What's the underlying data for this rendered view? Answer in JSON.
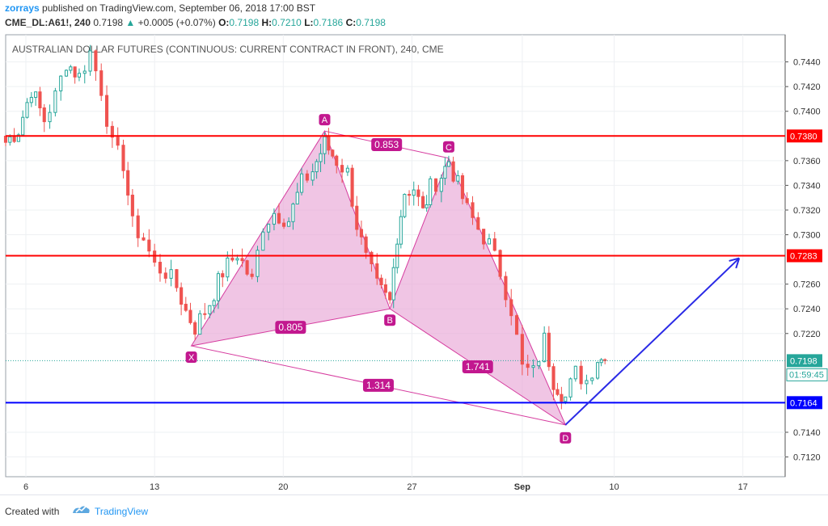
{
  "header": {
    "user": "zorrays",
    "published": "published on TradingView.com, September 06, 2018 17:00 BST",
    "symbol": "CME_DL:A61!, 240",
    "last": "0.7198",
    "change": "+0.0005 (+0.07%)",
    "o_label": "O:",
    "o_value": "0.7198",
    "h_label": "H:",
    "h_value": "0.7210",
    "l_label": "L:",
    "l_value": "0.7186",
    "c_label": "C:",
    "c_value": "0.7198"
  },
  "footer": {
    "created_with": "Created with",
    "brand": "TradingView"
  },
  "colors": {
    "up": "#26a69a",
    "down": "#ef5350",
    "pattern_fill": "#e8a6d6",
    "pattern_line": "#d63c9f",
    "resistance": "#ff0000",
    "support": "#0000ff",
    "projection": "#2a2ae6"
  },
  "chart_data": {
    "type": "candlestick",
    "title": "AUSTRALIAN DOLLAR FUTURES (CONTINUOUS: CURRENT CONTRACT IN FRONT), 240, CME",
    "ylim": [
      0.7104,
      0.7462
    ],
    "y_ticks": [
      "0.7440",
      "0.7420",
      "0.7400",
      "0.7360",
      "0.7340",
      "0.7320",
      "0.7300",
      "0.7260",
      "0.7240",
      "0.7220",
      "0.7140",
      "0.7120"
    ],
    "x_ticks": [
      {
        "label": "6",
        "day": 6
      },
      {
        "label": "13",
        "day": 13
      },
      {
        "label": "20",
        "day": 20
      },
      {
        "label": "27",
        "day": 27
      },
      {
        "label": "Sep",
        "day": 33,
        "bold": true
      },
      {
        "label": "10",
        "day": 38
      },
      {
        "label": "17",
        "day": 45
      }
    ],
    "x_range_days": [
      4.9,
      47.3
    ],
    "last_price": {
      "value": 0.7198,
      "label": "0.7198",
      "countdown": "01:59:45"
    },
    "horizontal_lines": [
      {
        "value": 0.738,
        "label": "0.7380",
        "color": "red"
      },
      {
        "value": 0.7283,
        "label": "0.7283",
        "color": "red"
      },
      {
        "value": 0.7164,
        "label": "0.7164",
        "color": "blue"
      }
    ],
    "pattern": {
      "points": [
        {
          "name": "X",
          "day": 15.0,
          "price": 0.721
        },
        {
          "name": "A",
          "day": 22.25,
          "price": 0.7384
        },
        {
          "name": "B",
          "day": 25.8,
          "price": 0.724
        },
        {
          "name": "C",
          "day": 29.0,
          "price": 0.7362
        },
        {
          "name": "D",
          "day": 35.35,
          "price": 0.7146
        }
      ],
      "ratios": [
        {
          "label": "0.805",
          "between": [
            "X",
            "B"
          ]
        },
        {
          "label": "0.853",
          "between": [
            "A",
            "C"
          ]
        },
        {
          "label": "1.741",
          "between": [
            "B",
            "D"
          ]
        },
        {
          "label": "1.314",
          "between": [
            "X",
            "D"
          ]
        }
      ]
    },
    "projection": {
      "from": {
        "day": 35.35,
        "price": 0.7146
      },
      "to": {
        "day": 44.8,
        "price": 0.7281
      }
    },
    "candle_anchors": [
      [
        4.9,
        0.7375
      ],
      [
        5.6,
        0.7385
      ],
      [
        6.3,
        0.7418
      ],
      [
        7.0,
        0.7393
      ],
      [
        7.6,
        0.7412
      ],
      [
        8.2,
        0.744
      ],
      [
        8.9,
        0.7428
      ],
      [
        9.5,
        0.7448
      ],
      [
        10.1,
        0.7418
      ],
      [
        10.7,
        0.7372
      ],
      [
        11.3,
        0.7358
      ],
      [
        11.8,
        0.7308
      ],
      [
        12.4,
        0.7297
      ],
      [
        13.0,
        0.7275
      ],
      [
        13.6,
        0.727
      ],
      [
        14.2,
        0.7258
      ],
      [
        14.7,
        0.7238
      ],
      [
        15.2,
        0.7225
      ],
      [
        16.0,
        0.7245
      ],
      [
        16.7,
        0.727
      ],
      [
        17.5,
        0.7285
      ],
      [
        18.3,
        0.7262
      ],
      [
        18.9,
        0.7308
      ],
      [
        19.5,
        0.7318
      ],
      [
        20.3,
        0.7312
      ],
      [
        21.0,
        0.7342
      ],
      [
        21.6,
        0.7352
      ],
      [
        22.25,
        0.7374
      ],
      [
        22.9,
        0.736
      ],
      [
        23.5,
        0.735
      ],
      [
        24.0,
        0.7308
      ],
      [
        24.5,
        0.728
      ],
      [
        25.1,
        0.7258
      ],
      [
        25.8,
        0.7245
      ],
      [
        26.2,
        0.73
      ],
      [
        26.6,
        0.7335
      ],
      [
        27.1,
        0.7338
      ],
      [
        27.6,
        0.7318
      ],
      [
        28.0,
        0.7338
      ],
      [
        28.6,
        0.7348
      ],
      [
        29.0,
        0.736
      ],
      [
        29.5,
        0.734
      ],
      [
        30.0,
        0.732
      ],
      [
        30.6,
        0.7305
      ],
      [
        31.2,
        0.7292
      ],
      [
        31.8,
        0.727
      ],
      [
        32.4,
        0.724
      ],
      [
        33.0,
        0.7192
      ],
      [
        33.6,
        0.7188
      ],
      [
        34.2,
        0.7215
      ],
      [
        34.7,
        0.7182
      ],
      [
        35.35,
        0.7168
      ],
      [
        35.9,
        0.7188
      ],
      [
        36.5,
        0.7182
      ],
      [
        37.1,
        0.72
      ],
      [
        37.5,
        0.7198
      ]
    ]
  }
}
